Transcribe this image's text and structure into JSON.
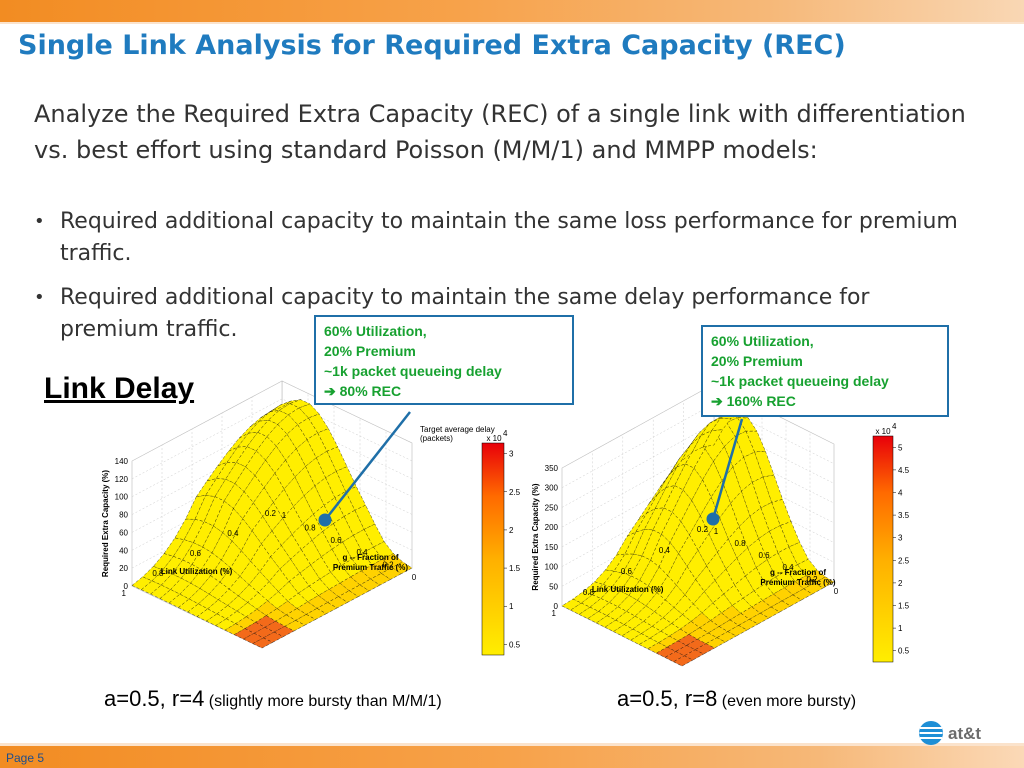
{
  "slide": {
    "title": "Single Link Analysis for Required Extra Capacity (REC)",
    "intro": "Analyze the Required Extra Capacity (REC) of a single link with differentiation vs. best effort using standard Poisson (M/M/1) and MMPP models:",
    "bullets": [
      "Required additional capacity to maintain the same loss performance for premium traffic.",
      "Required additional capacity to maintain the same delay performance for premium traffic."
    ],
    "section_heading": "Link Delay",
    "page_label": "Page 5",
    "logo_text": "at&t",
    "colors": {
      "title": "#1f7bbf",
      "callout_text": "#17a130",
      "callout_border": "#1f6fa8",
      "bar_orange": "#f28c22",
      "surface": "#ffee00"
    }
  },
  "callouts": [
    {
      "line1": "60% Utilization,",
      "line2": "20% Premium",
      "line3": "~1k packet queueing delay",
      "line4": "➔ 80% REC"
    },
    {
      "line1": "60% Utilization,",
      "line2": "20% Premium",
      "line3": "~1k packet queueing delay",
      "line4": "➔ 160% REC"
    }
  ],
  "captions": [
    {
      "main": "a=0.5, r=4",
      "note": "(slightly more bursty than M/M/1)"
    },
    {
      "main": "a=0.5, r=8",
      "note": "(even more bursty)"
    }
  ],
  "chart_data": [
    {
      "type": "surface3d",
      "zlabel": "Required Extra Capacity (%)",
      "xlabel": "Link Utilization (%)",
      "ylabel": "g -- Fraction of Premium Traffic (%)",
      "z_ticks": [
        "0",
        "20",
        "40",
        "60",
        "80",
        "100",
        "120",
        "140"
      ],
      "x_ticks": [
        "1",
        "0.8",
        "0.6",
        "0.4",
        "0.2"
      ],
      "y_ticks": [
        "1",
        "0.8",
        "0.6",
        "0.4",
        "0.2",
        "0"
      ],
      "colorbar_title": "Target average delay (packets)",
      "colorbar_exponent": "x 10^4",
      "colorbar_ticks": [
        "3",
        "2.5",
        "2",
        "1.5",
        "1",
        "0.5"
      ],
      "highlight_point": {
        "utilization": 0.6,
        "premium_fraction": 0.2,
        "rec_percent": 80
      },
      "peak_rec": 132
    },
    {
      "type": "surface3d",
      "zlabel": "Required Extra Capacity (%)",
      "xlabel": "Link Utilization (%)",
      "ylabel": "g -- Fraction of Premium Traffic (%)",
      "z_ticks": [
        "0",
        "50",
        "100",
        "150",
        "200",
        "250",
        "300",
        "350"
      ],
      "x_ticks": [
        "1",
        "0.8",
        "0.6",
        "0.4",
        "0.2"
      ],
      "y_ticks": [
        "1",
        "0.8",
        "0.6",
        "0.4",
        "0.2",
        "0"
      ],
      "colorbar_title": "",
      "colorbar_exponent": "x 10^4",
      "colorbar_ticks": [
        "5",
        "4.5",
        "4",
        "3.5",
        "3",
        "2.5",
        "2",
        "1.5",
        "1",
        "0.5"
      ],
      "highlight_point": {
        "utilization": 0.6,
        "premium_fraction": 0.2,
        "rec_percent": 160
      },
      "peak_rec": 350
    }
  ]
}
